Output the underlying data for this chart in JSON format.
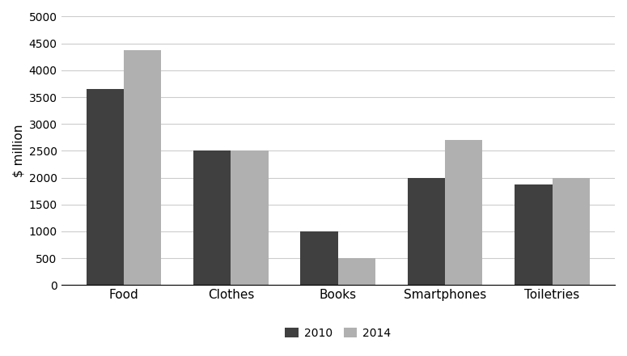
{
  "categories": [
    "Food",
    "Clothes",
    "Books",
    "Smartphones",
    "Toiletries"
  ],
  "values_2010": [
    3650,
    2500,
    1000,
    2000,
    1875
  ],
  "values_2014": [
    4375,
    2500,
    500,
    2700,
    2000
  ],
  "color_2010": "#404040",
  "color_2014": "#b0b0b0",
  "ylabel": "$ million",
  "ylim": [
    0,
    5000
  ],
  "yticks": [
    0,
    500,
    1000,
    1500,
    2000,
    2500,
    3000,
    3500,
    4000,
    4500,
    5000
  ],
  "legend_labels": [
    "2010",
    "2014"
  ],
  "bar_width": 0.35,
  "background_color": "#ffffff",
  "grid_color": "#cccccc"
}
